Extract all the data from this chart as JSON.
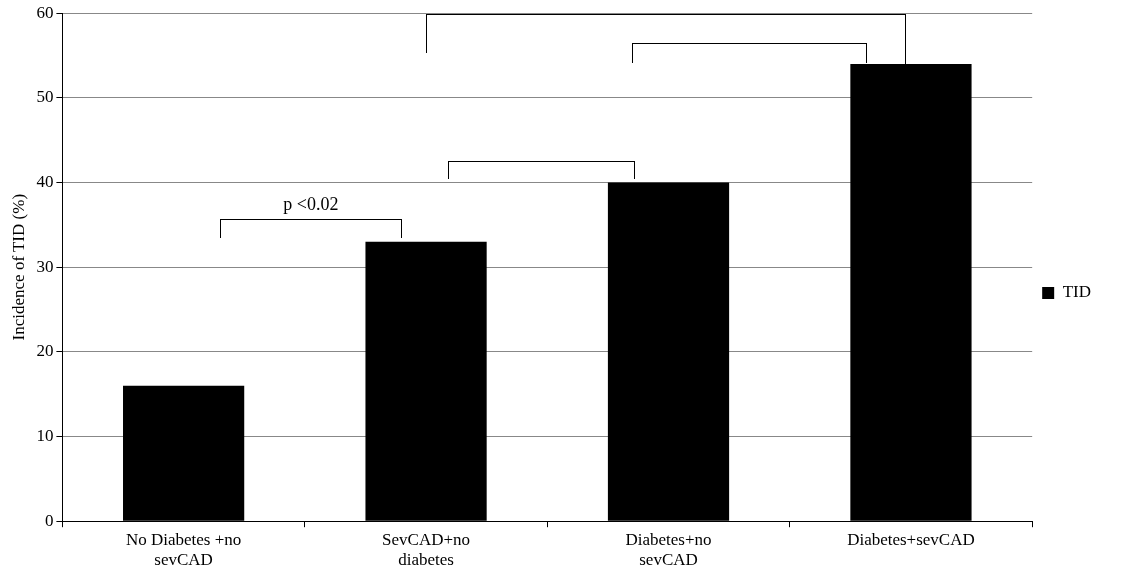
{
  "chart_data": {
    "type": "bar",
    "ylabel": "Incidence of TID (%)",
    "categories": [
      "No Diabetes +no sevCAD",
      "SevCAD+no diabetes",
      "Diabetes+no sevCAD",
      "Diabetes+sevCAD"
    ],
    "series": [
      {
        "name": "TID",
        "color": "#000000",
        "values": [
          16,
          33,
          40,
          54
        ]
      }
    ],
    "ylim": [
      0,
      60
    ],
    "yticks": [
      0,
      10,
      20,
      30,
      40,
      50,
      60
    ],
    "grid": "y",
    "legend": "right",
    "annotations": [
      "p <0.02"
    ]
  }
}
